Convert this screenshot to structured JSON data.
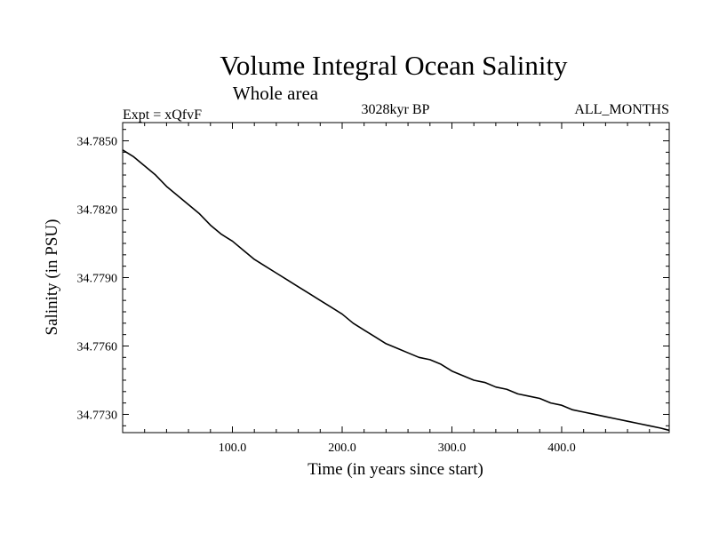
{
  "chart_data": {
    "type": "line",
    "title": "Volume Integral Ocean Salinity",
    "subtitle": "Whole area",
    "left_label": "Expt = xQfvF",
    "center_label": "3028kyr BP",
    "right_label": "ALL_MONTHS",
    "xlabel": "Time (in years since start)",
    "ylabel": "Salinity (in PSU)",
    "xlim": [
      0,
      498
    ],
    "ylim": [
      34.7722,
      34.7858
    ],
    "x_ticks": [
      100,
      200,
      300,
      400
    ],
    "x_tick_labels": [
      "100.0",
      "200.0",
      "300.0",
      "400.0"
    ],
    "y_ticks": [
      34.773,
      34.776,
      34.779,
      34.782,
      34.785
    ],
    "y_tick_labels": [
      "34.7730",
      "34.7760",
      "34.7790",
      "34.7820",
      "34.7850"
    ],
    "series": [
      {
        "name": "Salinity",
        "x": [
          0,
          10,
          20,
          30,
          40,
          50,
          60,
          70,
          80,
          90,
          100,
          110,
          120,
          130,
          140,
          150,
          160,
          170,
          180,
          190,
          200,
          210,
          220,
          230,
          240,
          250,
          260,
          270,
          280,
          290,
          300,
          310,
          320,
          330,
          340,
          350,
          360,
          370,
          380,
          390,
          400,
          410,
          420,
          430,
          440,
          450,
          460,
          470,
          480,
          490,
          498
        ],
        "values": [
          34.7846,
          34.7843,
          34.7839,
          34.7835,
          34.783,
          34.7826,
          34.7822,
          34.7818,
          34.7813,
          34.7809,
          34.7806,
          34.7802,
          34.7798,
          34.7795,
          34.7792,
          34.7789,
          34.7786,
          34.7783,
          34.778,
          34.7777,
          34.7774,
          34.777,
          34.7767,
          34.7764,
          34.7761,
          34.7759,
          34.7757,
          34.7755,
          34.7754,
          34.7752,
          34.7749,
          34.7747,
          34.7745,
          34.7744,
          34.7742,
          34.7741,
          34.7739,
          34.7738,
          34.7737,
          34.7735,
          34.7734,
          34.7732,
          34.7731,
          34.773,
          34.7729,
          34.7728,
          34.7727,
          34.7726,
          34.7725,
          34.7724,
          34.7723
        ]
      }
    ]
  }
}
